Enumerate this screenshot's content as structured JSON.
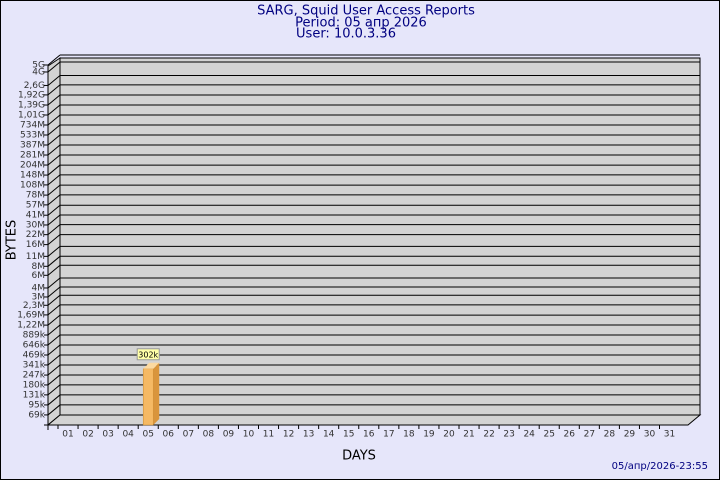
{
  "chart_data": {
    "type": "bar",
    "title": "SARG, Squid User Access Reports",
    "subtitle": "Period: 05 апр 2026",
    "user": "User: 10.0.3.36",
    "ylabel": "BYTES",
    "xlabel": "DAYS",
    "footer": "05/апр/2026-23:55",
    "categories": [
      "01",
      "02",
      "03",
      "04",
      "05",
      "06",
      "07",
      "08",
      "09",
      "10",
      "11",
      "12",
      "13",
      "14",
      "15",
      "16",
      "17",
      "18",
      "19",
      "20",
      "21",
      "22",
      "23",
      "24",
      "25",
      "26",
      "27",
      "28",
      "29",
      "30",
      "31"
    ],
    "values": [
      null,
      null,
      null,
      null,
      302000,
      null,
      null,
      null,
      null,
      null,
      null,
      null,
      null,
      null,
      null,
      null,
      null,
      null,
      null,
      null,
      null,
      null,
      null,
      null,
      null,
      null,
      null,
      null,
      null,
      null,
      null
    ],
    "value_labels": [
      null,
      null,
      null,
      null,
      "302k",
      null,
      null,
      null,
      null,
      null,
      null,
      null,
      null,
      null,
      null,
      null,
      null,
      null,
      null,
      null,
      null,
      null,
      null,
      null,
      null,
      null,
      null,
      null,
      null,
      null,
      null
    ],
    "color": "#f5b964",
    "log_scale": true,
    "ylim": [
      50000,
      5000000000
    ],
    "yticks": [
      {
        "value": 69000,
        "label": "69k"
      },
      {
        "value": 95000,
        "label": "95k"
      },
      {
        "value": 131000,
        "label": "131k"
      },
      {
        "value": 180000,
        "label": "180k"
      },
      {
        "value": 247000,
        "label": "247k"
      },
      {
        "value": 341000,
        "label": "341k"
      },
      {
        "value": 469000,
        "label": "469k"
      },
      {
        "value": 646000,
        "label": "646k"
      },
      {
        "value": 889000,
        "label": "889k"
      },
      {
        "value": 1220000,
        "label": "1,22M"
      },
      {
        "value": 1690000,
        "label": "1,69M"
      },
      {
        "value": 2300000,
        "label": "2,3M"
      },
      {
        "value": 3000000,
        "label": "3M"
      },
      {
        "value": 4000000,
        "label": "4M"
      },
      {
        "value": 6000000,
        "label": "6M"
      },
      {
        "value": 8000000,
        "label": "8M"
      },
      {
        "value": 11000000,
        "label": "11M"
      },
      {
        "value": 16000000,
        "label": "16M"
      },
      {
        "value": 22000000,
        "label": "22M"
      },
      {
        "value": 30000000,
        "label": "30M"
      },
      {
        "value": 41000000,
        "label": "41M"
      },
      {
        "value": 57000000,
        "label": "57M"
      },
      {
        "value": 78000000,
        "label": "78M"
      },
      {
        "value": 108000000,
        "label": "108M"
      },
      {
        "value": 148000000,
        "label": "148M"
      },
      {
        "value": 204000000,
        "label": "204M"
      },
      {
        "value": 281000000,
        "label": "281M"
      },
      {
        "value": 387000000,
        "label": "387M"
      },
      {
        "value": 533000000,
        "label": "533M"
      },
      {
        "value": 734000000,
        "label": "734M"
      },
      {
        "value": 1010000000,
        "label": "1,01G"
      },
      {
        "value": 1390000000,
        "label": "1,39G"
      },
      {
        "value": 1920000000,
        "label": "1,92G"
      },
      {
        "value": 2600000000,
        "label": "2,6G"
      },
      {
        "value": 4000000000,
        "label": "4G"
      },
      {
        "value": 5000000000,
        "label": "5G"
      }
    ],
    "grid": true
  }
}
